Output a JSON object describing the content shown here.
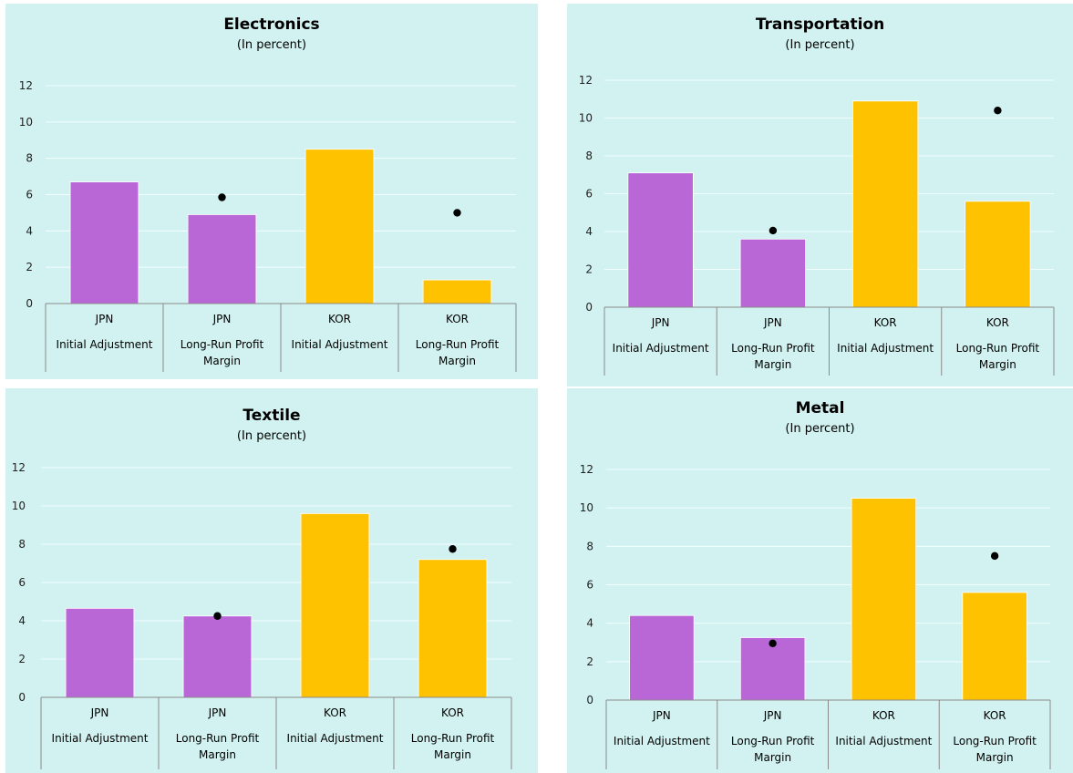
{
  "colors": {
    "panel_bg": "#d1f2f0",
    "jpn": "#b967d6",
    "kor": "#ffc200",
    "marker": "#000000",
    "grid": "#f2ffff",
    "axis": "#8a8a8a"
  },
  "chart_data": [
    {
      "type": "bar",
      "title": "Electronics",
      "subtitle": "(In percent)",
      "ylim": [
        0,
        12
      ],
      "yticks": [
        0,
        2,
        4,
        6,
        8,
        10,
        12
      ],
      "grid": true,
      "categories": [
        {
          "country": "JPN",
          "label_lines": [
            "Initial Adjustment"
          ]
        },
        {
          "country": "JPN",
          "label_lines": [
            "Long-Run Profit",
            "Margin"
          ]
        },
        {
          "country": "KOR",
          "label_lines": [
            "Initial Adjustment"
          ]
        },
        {
          "country": "KOR",
          "label_lines": [
            "Long-Run Profit",
            "Margin"
          ]
        }
      ],
      "bar_values": [
        6.7,
        4.9,
        8.5,
        1.3
      ],
      "marker_values": [
        null,
        5.85,
        null,
        5.0
      ],
      "bar_color_keys": [
        "jpn",
        "jpn",
        "kor",
        "kor"
      ]
    },
    {
      "type": "bar",
      "title": "Transportation",
      "subtitle": "(In percent)",
      "ylim": [
        0,
        12
      ],
      "yticks": [
        0,
        2,
        4,
        6,
        8,
        10,
        12
      ],
      "grid": true,
      "categories": [
        {
          "country": "JPN",
          "label_lines": [
            "Initial Adjustment"
          ]
        },
        {
          "country": "JPN",
          "label_lines": [
            "Long-Run Profit",
            "Margin"
          ]
        },
        {
          "country": "KOR",
          "label_lines": [
            "Initial Adjustment"
          ]
        },
        {
          "country": "KOR",
          "label_lines": [
            "Long-Run Profit",
            "Margin"
          ]
        }
      ],
      "bar_values": [
        7.1,
        3.6,
        10.9,
        5.6
      ],
      "marker_values": [
        null,
        4.05,
        null,
        10.4
      ],
      "bar_color_keys": [
        "jpn",
        "jpn",
        "kor",
        "kor"
      ]
    },
    {
      "type": "bar",
      "title": "Textile",
      "subtitle": "(In percent)",
      "ylim": [
        0,
        12
      ],
      "yticks": [
        0,
        2,
        4,
        6,
        8,
        10,
        12
      ],
      "grid": true,
      "categories": [
        {
          "country": "JPN",
          "label_lines": [
            "Initial Adjustment"
          ]
        },
        {
          "country": "JPN",
          "label_lines": [
            "Long-Run Profit",
            "Margin"
          ]
        },
        {
          "country": "KOR",
          "label_lines": [
            "Initial Adjustment"
          ]
        },
        {
          "country": "KOR",
          "label_lines": [
            "Long-Run Profit",
            "Margin"
          ]
        }
      ],
      "bar_values": [
        4.65,
        4.25,
        9.6,
        7.2
      ],
      "marker_values": [
        null,
        4.25,
        null,
        7.75
      ],
      "bar_color_keys": [
        "jpn",
        "jpn",
        "kor",
        "kor"
      ]
    },
    {
      "type": "bar",
      "title": "Metal",
      "subtitle": "(In percent)",
      "ylim": [
        0,
        12
      ],
      "yticks": [
        0,
        2,
        4,
        6,
        8,
        10,
        12
      ],
      "grid": true,
      "categories": [
        {
          "country": "JPN",
          "label_lines": [
            "Initial Adjustment"
          ]
        },
        {
          "country": "JPN",
          "label_lines": [
            "Long-Run Profit",
            "Margin"
          ]
        },
        {
          "country": "KOR",
          "label_lines": [
            "Initial Adjustment"
          ]
        },
        {
          "country": "KOR",
          "label_lines": [
            "Long-Run Profit",
            "Margin"
          ]
        }
      ],
      "bar_values": [
        4.4,
        3.25,
        10.5,
        5.6
      ],
      "marker_values": [
        null,
        2.95,
        null,
        7.5
      ],
      "bar_color_keys": [
        "jpn",
        "jpn",
        "kor",
        "kor"
      ]
    }
  ]
}
